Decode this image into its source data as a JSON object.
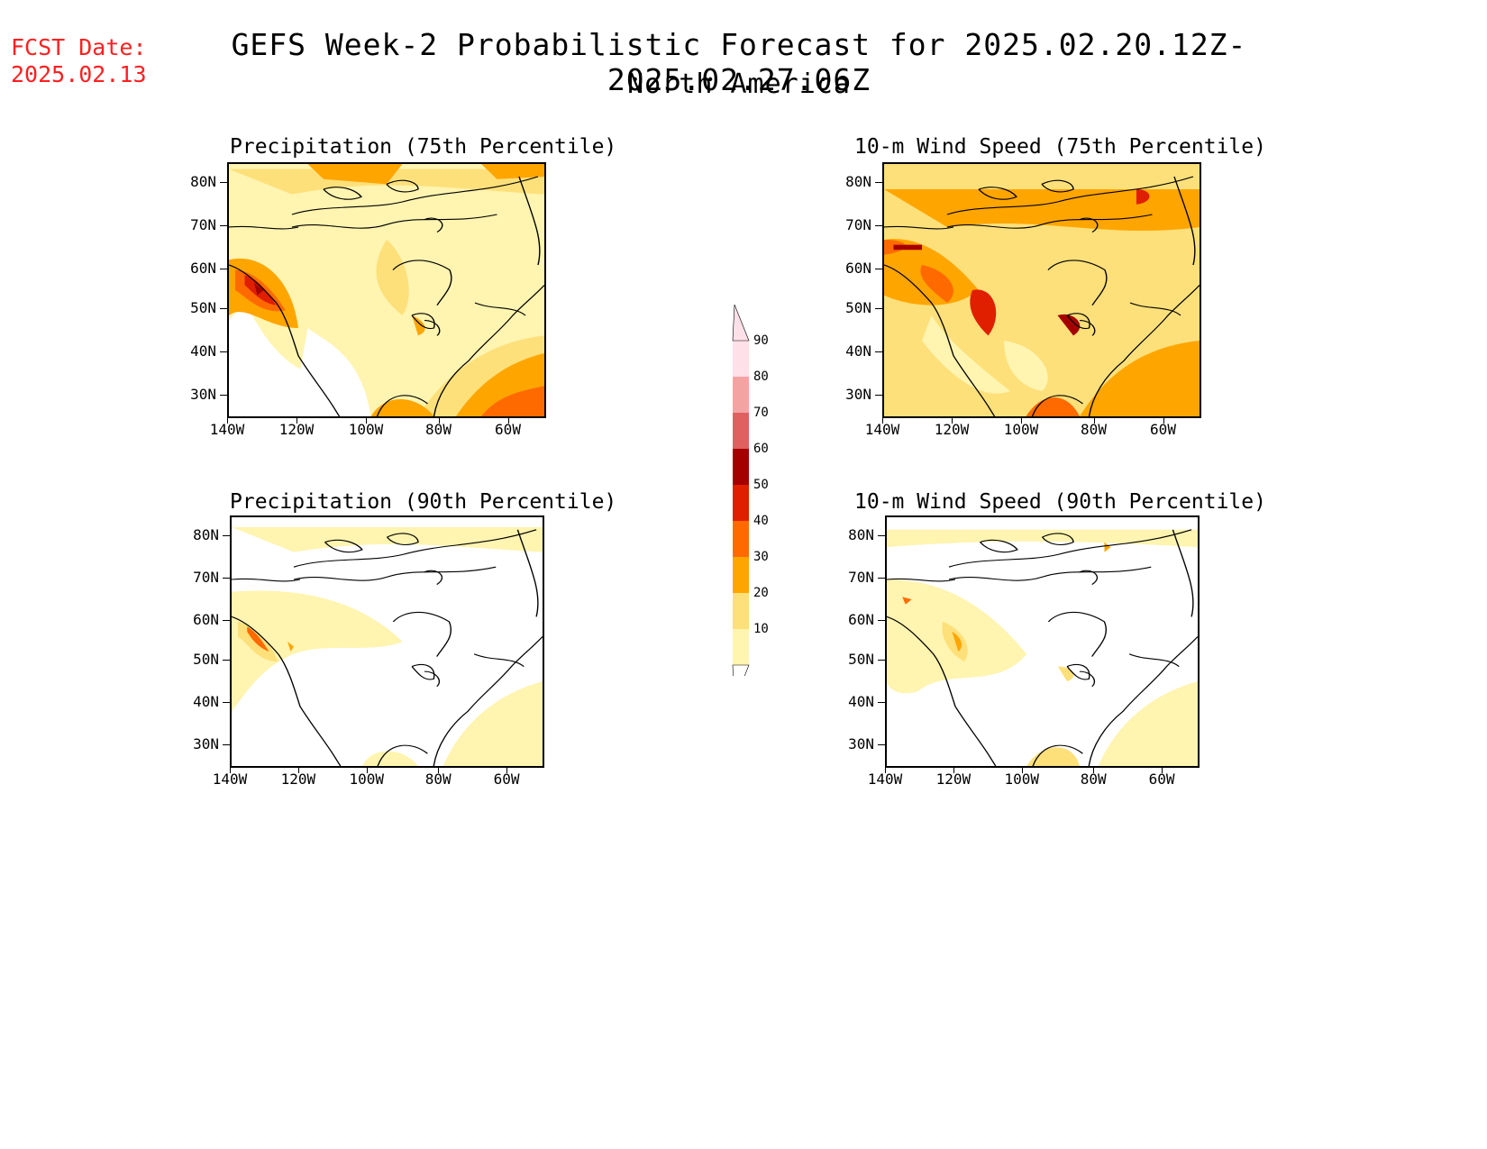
{
  "header": {
    "fcst_line1": "FCST Date:",
    "fcst_line2": "2025.02.13",
    "title": "GEFS Week-2 Probabilistic Forecast for 2025.02.20.12Z-2025.02.27.06Z",
    "subtitle": "North America"
  },
  "panels": [
    {
      "title": "Precipitation (75th Percentile)"
    },
    {
      "title": "10-m Wind Speed (75th Percentile)"
    },
    {
      "title": "Precipitation (90th Percentile)"
    },
    {
      "title": "10-m Wind Speed (90th Percentile)"
    }
  ],
  "axes": {
    "lat_labels": [
      "80N",
      "70N",
      "60N",
      "50N",
      "40N",
      "30N"
    ],
    "lon_labels": [
      "140W",
      "120W",
      "100W",
      "80W",
      "60W"
    ]
  },
  "colorbar": {
    "levels": [
      "90",
      "80",
      "70",
      "60",
      "50",
      "40",
      "30",
      "20",
      "10"
    ],
    "colors": [
      "#fff4b0",
      "#fde07a",
      "#ffa500",
      "#ff6a00",
      "#e01e00",
      "#a50000",
      "#e06060",
      "#f4a3a3",
      "#fde0e8"
    ]
  }
}
